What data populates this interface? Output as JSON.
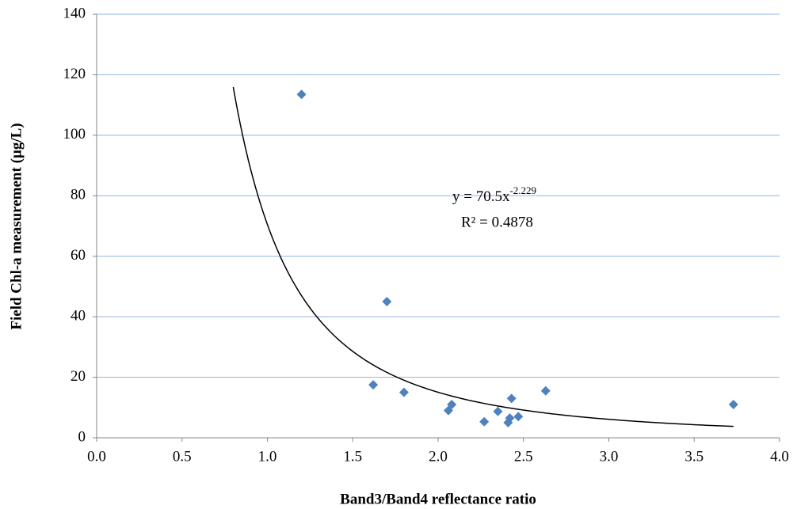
{
  "chart_data": {
    "type": "scatter",
    "x_label": "Band3/Band4 reflectance ratio",
    "y_label": "Field Chl-a measurement (µg/L)",
    "x": [
      1.2,
      1.7,
      1.62,
      1.8,
      2.06,
      2.08,
      2.27,
      2.35,
      2.41,
      2.42,
      2.43,
      2.47,
      2.63,
      3.73
    ],
    "values": [
      113.5,
      45,
      17.5,
      15,
      9,
      11,
      5.3,
      8.7,
      5,
      6.5,
      13,
      7,
      15.5,
      11
    ],
    "color": "#4f81bd",
    "xlim": [
      0,
      4
    ],
    "xticks": [
      {
        "value": 0,
        "label": "0.0"
      },
      0.5,
      {
        "value": 1,
        "label": "1.0"
      },
      1.5,
      {
        "value": 2,
        "label": "2.0"
      },
      2.5,
      {
        "value": 3,
        "label": "3.0"
      },
      3.5,
      {
        "value": 4,
        "label": "4.0"
      }
    ],
    "ylim": [
      0,
      140
    ],
    "yticks": [
      0,
      20,
      40,
      60,
      80,
      100,
      120,
      140
    ],
    "grid": true,
    "grid_color": "#8eb4e3",
    "trendline": {
      "a": 70.5,
      "b": -2.229,
      "xlim": [
        0.8,
        3.73
      ],
      "label": "y = 70.5x",
      "exponent_label": "-2.229",
      "r2_label": "R² = 0.4878"
    }
  }
}
